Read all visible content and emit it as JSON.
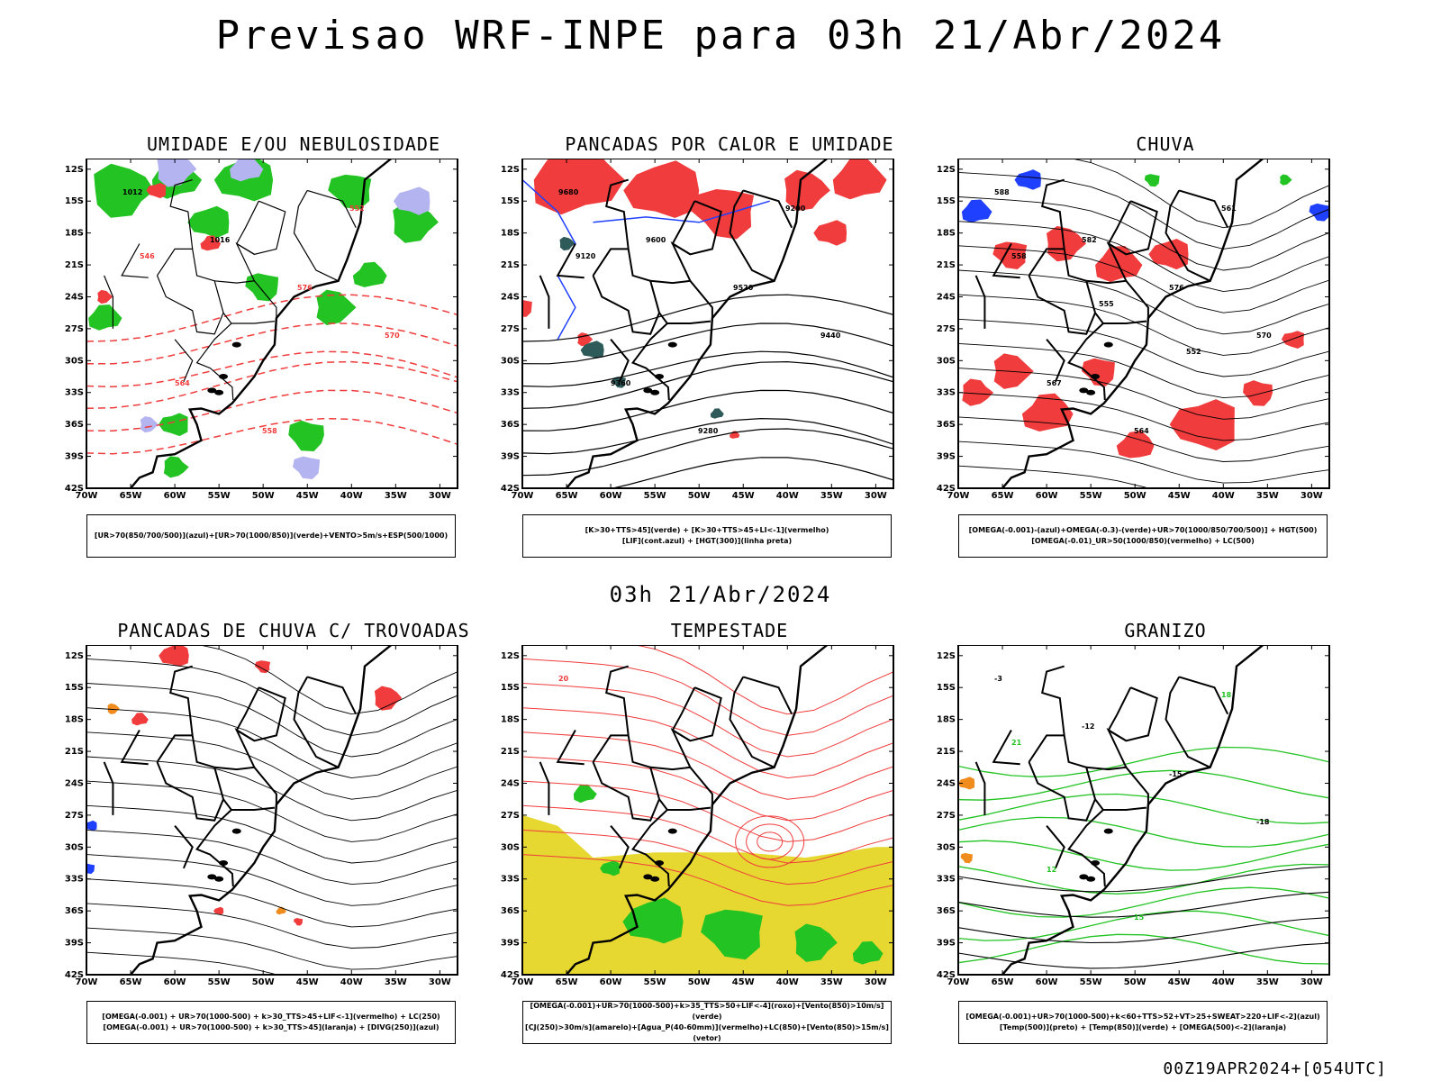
{
  "header": {
    "title": "Previsao WRF-INPE  para 03h 21/Abr/2024"
  },
  "middle": {
    "title": "03h 21/Abr/2024"
  },
  "footer": {
    "run_info": "00Z19APR2024+[054UTC]"
  },
  "axes": {
    "lat_labels": [
      "12S",
      "15S",
      "18S",
      "21S",
      "24S",
      "27S",
      "30S",
      "33S",
      "36S",
      "39S",
      "42S"
    ],
    "lon_labels": [
      "70W",
      "65W",
      "60W",
      "55W",
      "50W",
      "45W",
      "40W",
      "35W",
      "30W"
    ]
  },
  "colors": {
    "red": "#f03c3c",
    "green": "#22c322",
    "blue": "#2040ff",
    "lavender": "#b4b4f0",
    "darkteal": "#2e5a5a",
    "yellow": "#e6d830",
    "orange": "#f08c1e",
    "black": "#000000"
  },
  "panels": [
    {
      "title": "UMIDADE E/OU NEBULOSIDADE",
      "legend": [
        "[UR>70(850/700/500)](azul)+[UR>70(1000/850)](verde)+VENTO>5m/s+ESP(500/1000)"
      ],
      "labels": [
        "1012",
        "1016",
        "576",
        "570",
        "564",
        "558",
        "552",
        "546"
      ]
    },
    {
      "title": "PANCADAS POR CALOR E UMIDADE",
      "legend": [
        "[K>30+TTS>45](verde) + [K>30+TTS>45+LI<-1](vermelho)",
        "[LIF](cont.azul) + [HGT(300)](linha preta)"
      ],
      "labels": [
        "9680",
        "9600",
        "9520",
        "9440",
        "9360",
        "9280",
        "9200",
        "9120"
      ]
    },
    {
      "title": "CHUVA",
      "legend": [
        "[OMEGA(-0.001)-(azul)+OMEGA(-0.3)-(verde)+UR>70(1000/850/700/500)] + HGT(500)",
        "[OMEGA(-0.01)_UR>50(1000/850)(vermelho) + LC(500)"
      ],
      "labels": [
        "588",
        "582",
        "576",
        "570",
        "567",
        "564",
        "561",
        "558",
        "555",
        "552"
      ]
    },
    {
      "title": "PANCADAS DE CHUVA C/ TROVOADAS",
      "legend": [
        "[OMEGA(-0.001) + UR>70(1000-500) + k>30_TTS>45+LIF<-1](vermelho) + LC(250)",
        "[OMEGA(-0.001) + UR>70(1000-500) + k>30_TTS>45](laranja) + [DIVG(250)](azul)"
      ],
      "labels": []
    },
    {
      "title": "TEMPESTADE",
      "legend": [
        "[OMEGA(-0.001)+UR>70(1000-500)+k>35_TTS>50+LIF<-4](roxo)+[Vento(850)>10m/s](verde)",
        "[CJ(250)>30m/s](amarelo)+[Agua_P(40-60mm)](vermelho)+LC(850)+[Vento(850)>15m/s](vetor)"
      ],
      "labels": [
        "20"
      ]
    },
    {
      "title": "GRANIZO",
      "legend": [
        "[OMEGA(-0.001)+UR>70(1000-500)+k<60+TTS>52+VT>25+SWEAT>220+LIF<-2](azul)",
        "[Temp(500)](preto) + [Temp(850)](verde) + [OMEGA(500)<-2](laranja)"
      ],
      "labels": [
        "-3",
        "-12",
        "-15",
        "-18",
        "12",
        "15",
        "18",
        "21"
      ]
    }
  ]
}
